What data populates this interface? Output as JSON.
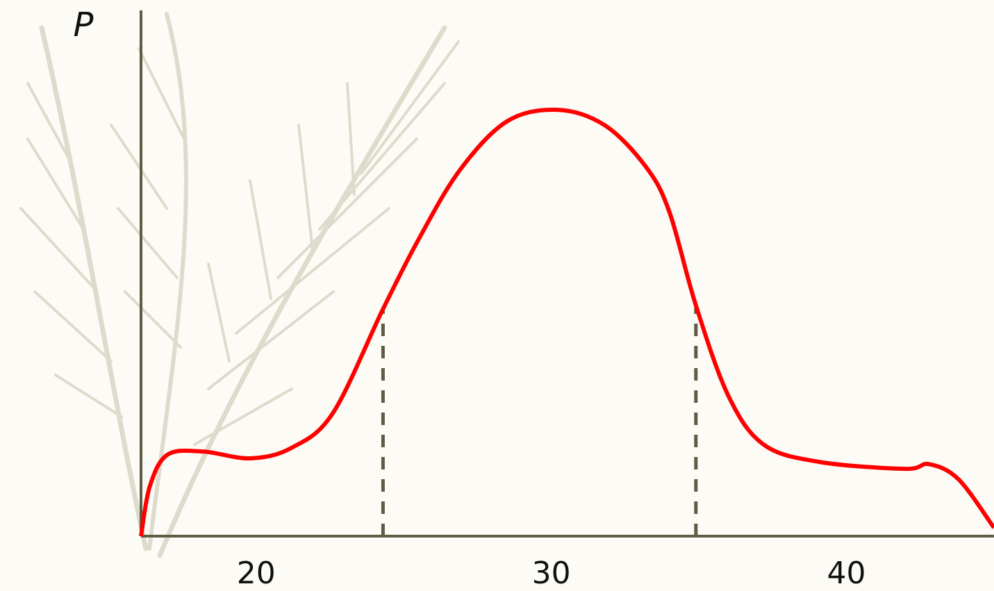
{
  "chart_data": {
    "type": "line",
    "y_label": "P",
    "x": [
      16.1,
      16.4,
      17.0,
      18.2,
      19.8,
      21.2,
      22.6,
      24.3,
      25.5,
      26.9,
      28.5,
      30.2,
      31.8,
      33.2,
      34.0,
      34.9,
      36.0,
      37.2,
      39.1,
      42.0,
      42.8,
      43.8,
      45.0
    ],
    "series": [
      {
        "color": "#ff0000",
        "values": [
          0,
          0.095,
          0.155,
          0.161,
          0.148,
          0.168,
          0.234,
          0.432,
          0.564,
          0.696,
          0.789,
          0.811,
          0.782,
          0.703,
          0.617,
          0.439,
          0.267,
          0.174,
          0.141,
          0.128,
          0.137,
          0.108,
          0.016
        ]
      }
    ],
    "markers": [
      24.3,
      34.9
    ],
    "xlim": [
      16.1,
      45.0
    ],
    "ylim": [
      0,
      1
    ],
    "xticks": [
      20,
      30,
      40
    ]
  }
}
